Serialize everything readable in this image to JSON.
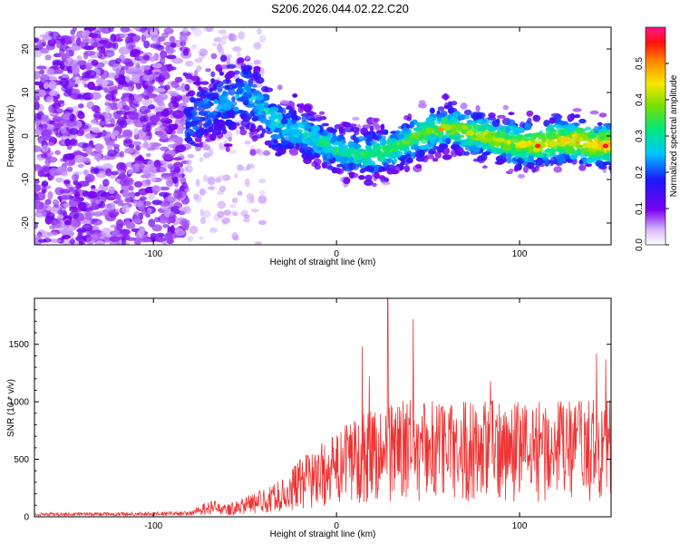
{
  "title": "S206.2026.044.02.22.C20",
  "chart_data": [
    {
      "type": "heatmap",
      "xlabel": "Height of straight line (km)",
      "ylabel": "Frequency (Hz)",
      "xlim": [
        -165,
        150
      ],
      "ylim": [
        -25,
        25
      ],
      "xticks": [
        "-100",
        "0",
        "100"
      ],
      "yticks": [
        "-20",
        "-10",
        "0",
        "10",
        "20"
      ],
      "colorbar": {
        "label": "Normalized spectral amplitude",
        "range": [
          0.0,
          0.6
        ],
        "ticks": [
          "0.0",
          "0.1",
          "0.2",
          "0.3",
          "0.4",
          "0.5"
        ]
      },
      "ridge": {
        "x": [
          -80,
          -70,
          -60,
          -50,
          -40,
          -30,
          -20,
          -10,
          0,
          10,
          20,
          30,
          40,
          50,
          60,
          70,
          80,
          90,
          100,
          110,
          120,
          130,
          140,
          148
        ],
        "freq_hz": [
          4,
          6,
          8,
          10,
          6,
          2,
          1,
          -1,
          -3,
          -4,
          -4,
          -3,
          -1,
          1,
          2,
          1,
          0,
          -1,
          -2,
          -2,
          -1,
          -1,
          -2,
          -2
        ]
      }
    },
    {
      "type": "line",
      "xlabel": "Height of straight line (km)",
      "ylabel": "SNR (10 * v/v)",
      "xlim": [
        -165,
        150
      ],
      "ylim": [
        0,
        1900
      ],
      "xticks": [
        "-100",
        "0",
        "100"
      ],
      "yticks": [
        "0",
        "500",
        "1000",
        "1500"
      ],
      "color": "#ee3333",
      "envelope": {
        "x": [
          -165,
          -120,
          -80,
          -70,
          -60,
          -50,
          -40,
          -30,
          -20,
          -10,
          0,
          10,
          20,
          30,
          40,
          60,
          80,
          100,
          120,
          150
        ],
        "level": [
          30,
          30,
          40,
          120,
          90,
          150,
          200,
          270,
          420,
          520,
          600,
          750,
          800,
          850,
          850,
          850,
          850,
          850,
          850,
          850
        ]
      },
      "peaks": [
        {
          "x": 28,
          "y": 1900
        },
        {
          "x": 42,
          "y": 1720
        },
        {
          "x": 14,
          "y": 1480
        },
        {
          "x": 18,
          "y": 1220
        },
        {
          "x": 142,
          "y": 1420
        },
        {
          "x": 147,
          "y": 1370
        },
        {
          "x": 84,
          "y": 1180
        }
      ]
    }
  ]
}
